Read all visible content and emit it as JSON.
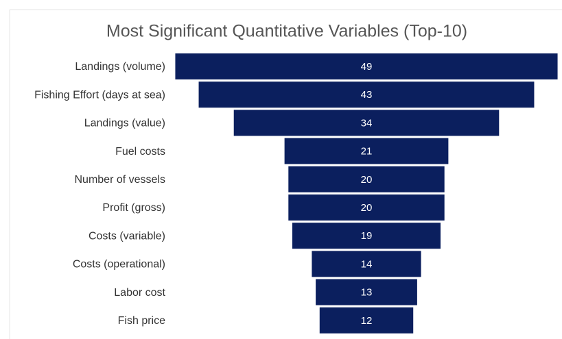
{
  "chart_data": {
    "type": "funnel",
    "title": "Most Significant Quantitative Variables (Top-10)",
    "categories": [
      "Landings (volume)",
      "Fishing Effort (days at sea)",
      "Landings (value)",
      "Fuel costs",
      "Number of vessels",
      "Profit (gross)",
      "Costs (variable)",
      "Costs (operational)",
      "Labor cost",
      "Fish price"
    ],
    "values": [
      49,
      43,
      34,
      21,
      20,
      20,
      19,
      14,
      13,
      12
    ],
    "color": "#0b1f5e"
  }
}
